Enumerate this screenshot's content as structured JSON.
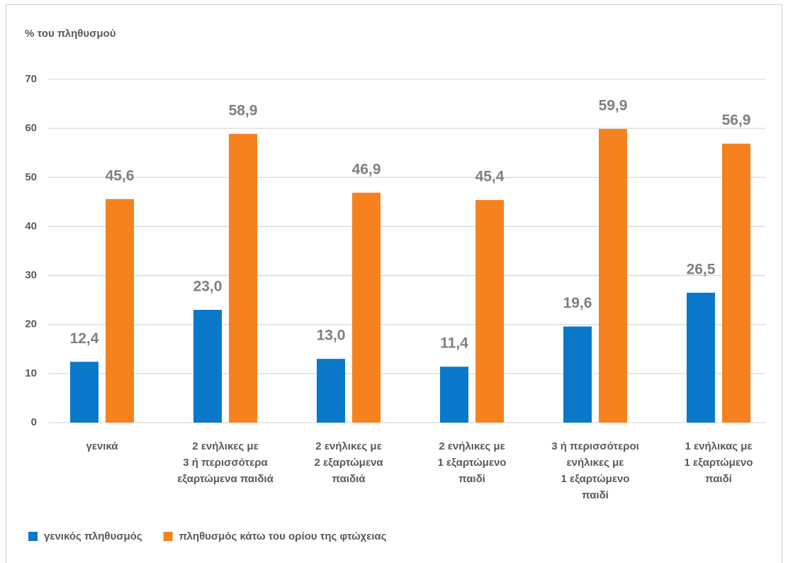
{
  "chart_data": {
    "type": "bar",
    "y_axis_title": "% του πληθυσμού",
    "categories": [
      "γενικά",
      "2 ενήλικες με\n3 ή περισσότερα\nεξαρτώμενα παιδιά",
      "2 ενήλικες με\n2 εξαρτώμενα\nπαιδιά",
      "2 ενήλικες με\n1 εξαρτώμενο\nπαιδί",
      "3 ή περισσότεροι\nενήλικες με\n1 εξαρτώμενο\nπαιδί",
      "1 ενήλικας με\n1 εξαρτώμενο\nπαιδί"
    ],
    "series": [
      {
        "name": "γενικός πληθυσμός",
        "color": "#0a78c8",
        "values": [
          12.4,
          23.0,
          13.0,
          11.4,
          19.6,
          26.5
        ],
        "value_labels": [
          "12,4",
          "23,0",
          "13,0",
          "11,4",
          "19,6",
          "26,5"
        ]
      },
      {
        "name": "πληθυσμός κάτω του ορίου της φτώχειας",
        "color": "#f5821f",
        "values": [
          45.6,
          58.9,
          46.9,
          45.4,
          59.9,
          56.9
        ],
        "value_labels": [
          "45,6",
          "58,9",
          "46,9",
          "45,4",
          "59,9",
          "56,9"
        ]
      }
    ],
    "ylim": [
      0,
      70
    ],
    "yticks": [
      0,
      10,
      20,
      30,
      40,
      50,
      60,
      70
    ],
    "grid": true,
    "legend": "bottom"
  }
}
